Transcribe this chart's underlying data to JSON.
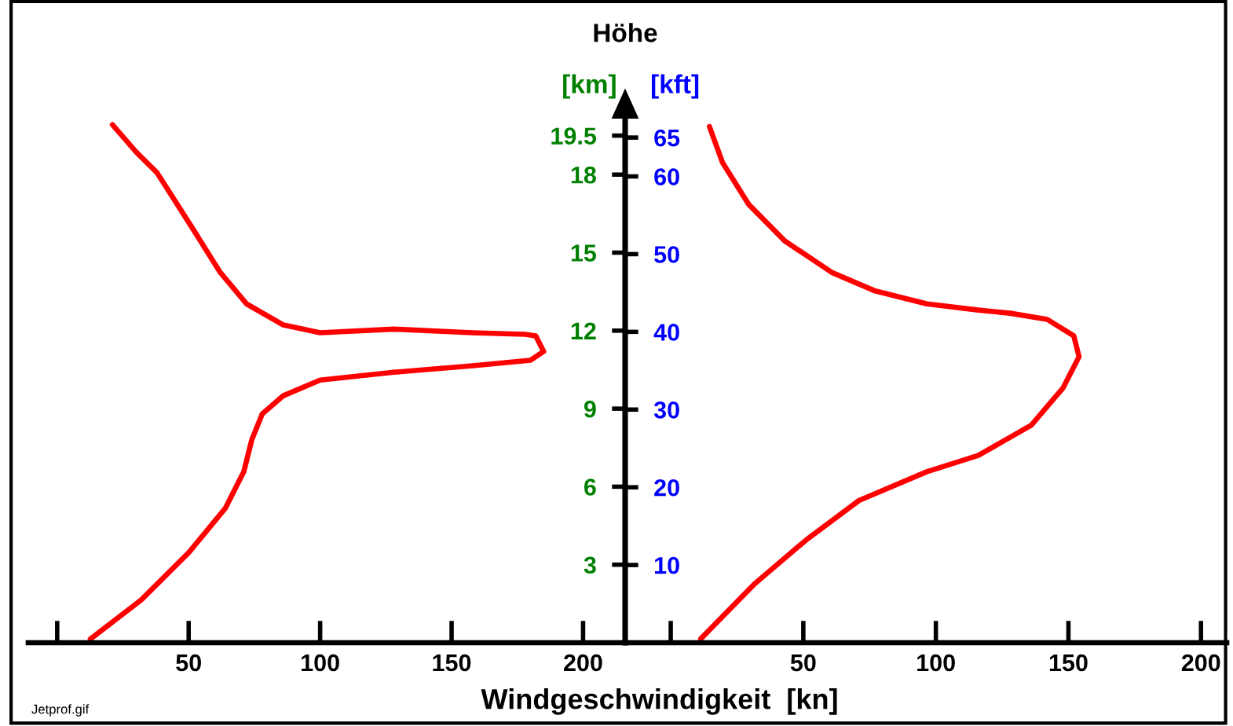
{
  "chart_data": [
    {
      "type": "line",
      "title": "Höhe",
      "xlabel": "Windgeschwindigkeit  [kn]",
      "ylabel": "[km]",
      "annotations": [
        "Jetprof.gif"
      ],
      "series": [
        {
          "color": "#ff0000",
          "x": [
            12.6,
            32,
            50,
            64,
            71,
            74,
            78,
            86,
            100,
            128,
            158,
            180,
            185,
            182,
            178,
            158,
            128,
            100,
            86,
            72,
            62,
            52,
            38,
            30,
            21
          ],
          "values": [
            0.14,
            1.65,
            3.46,
            5.18,
            6.59,
            7.8,
            8.8,
            9.5,
            10.1,
            10.4,
            10.65,
            10.86,
            11.2,
            11.8,
            11.86,
            11.92,
            12.06,
            11.92,
            12.22,
            13.03,
            14.24,
            15.85,
            18.07,
            18.87,
            19.92
          ]
        }
      ],
      "xlim": [
        -11,
        216
      ],
      "ylim": [
        0,
        20.4
      ],
      "xticks": [
        {
          "value": 0,
          "label": null
        },
        50,
        100,
        150,
        200
      ],
      "yticks": [
        3,
        6,
        9,
        12,
        15,
        18,
        19.5
      ],
      "marker": "none",
      "line_style": "solid"
    },
    {
      "type": "line",
      "ylabel": "[kft]",
      "series": [
        {
          "color": "#ff0000",
          "x": [
            11.3,
            31.4,
            51,
            71,
            96.6,
            116,
            136,
            148,
            154,
            152,
            142,
            128,
            116,
            96.6,
            76.8,
            61,
            43,
            29.4,
            19.5,
            14.6
          ],
          "values": [
            0.5,
            7.5,
            13.2,
            18.3,
            22,
            24.1,
            28,
            32.8,
            36.8,
            39.5,
            41.6,
            42.4,
            42.8,
            43.6,
            45.3,
            47.6,
            51.7,
            56.4,
            61.8,
            66.4
          ]
        }
      ],
      "xlim": [
        -17.2,
        209.7
      ],
      "ylim": [
        0,
        68
      ],
      "xticks": [
        {
          "value": 0,
          "label": null
        },
        50,
        100,
        150,
        200
      ],
      "yticks": [
        10,
        20,
        30,
        40,
        50,
        60,
        65
      ],
      "marker": "none",
      "line_style": "solid"
    }
  ]
}
